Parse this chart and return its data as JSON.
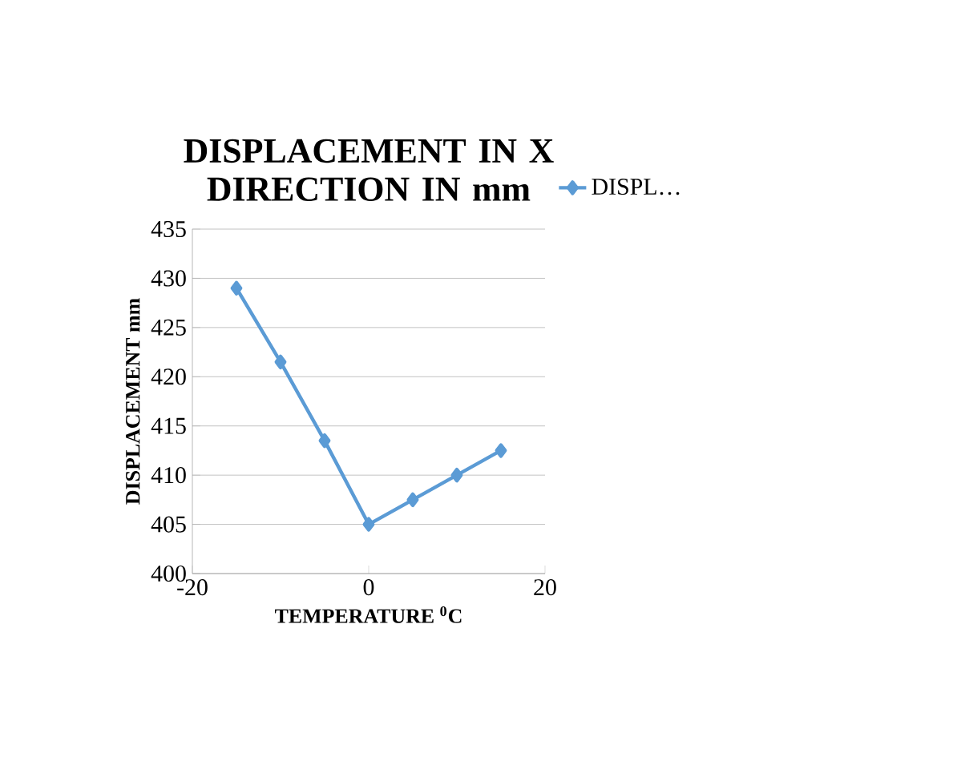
{
  "chart_data": {
    "type": "line",
    "title": "DISPLACEMENT IN X DIRECTION IN mm",
    "xlabel": "TEMPERATURE $^{0}$C",
    "ylabel": "DISPLACEMENT mm",
    "x": [
      -15,
      -10,
      -5,
      0,
      5,
      10,
      15
    ],
    "series": [
      {
        "name": "DISPL…",
        "color": "#5b9bd5",
        "values": [
          429,
          421.5,
          413.5,
          405,
          407.5,
          410,
          412.5
        ]
      }
    ],
    "xlim": [
      -20,
      20
    ],
    "xticks": [
      -20,
      0,
      20
    ],
    "ylim": [
      400,
      435
    ],
    "yticks": [
      400,
      405,
      410,
      415,
      420,
      425,
      430,
      435
    ],
    "grid": "y",
    "legend": "right",
    "marker": "diamond",
    "line_style": "solid"
  }
}
